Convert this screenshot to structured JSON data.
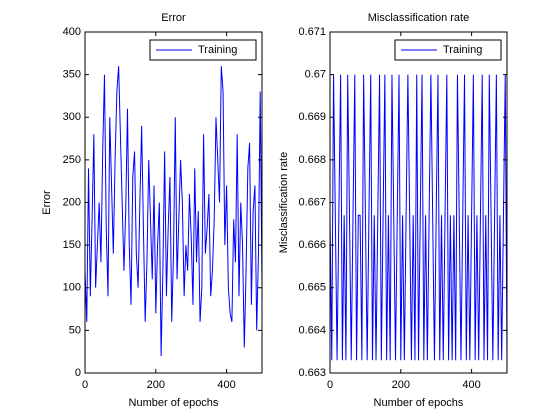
{
  "chart_data": [
    {
      "type": "line",
      "title": "Error",
      "xlabel": "Number of epochs",
      "ylabel": "Error",
      "x": [
        0,
        5,
        10,
        15,
        20,
        25,
        30,
        35,
        40,
        45,
        50,
        55,
        60,
        65,
        70,
        75,
        80,
        85,
        90,
        95,
        100,
        105,
        110,
        115,
        120,
        125,
        130,
        135,
        140,
        145,
        150,
        155,
        160,
        165,
        170,
        175,
        180,
        185,
        190,
        195,
        200,
        205,
        210,
        215,
        220,
        225,
        230,
        235,
        240,
        245,
        250,
        255,
        260,
        265,
        270,
        275,
        280,
        285,
        290,
        295,
        300,
        305,
        310,
        315,
        320,
        325,
        330,
        335,
        340,
        345,
        350,
        355,
        360,
        365,
        370,
        375,
        380,
        385,
        390,
        395,
        400,
        405,
        410,
        415,
        420,
        425,
        430,
        435,
        440,
        445,
        450,
        455,
        460,
        465,
        470,
        475,
        480,
        485,
        490,
        495,
        500
      ],
      "series": [
        {
          "name": "Training",
          "color": "#0000ff",
          "values": [
            120,
            60,
            240,
            90,
            180,
            280,
            100,
            150,
            200,
            130,
            260,
            350,
            170,
            90,
            300,
            220,
            140,
            250,
            330,
            360,
            280,
            200,
            120,
            190,
            310,
            150,
            80,
            230,
            260,
            140,
            100,
            200,
            290,
            170,
            60,
            130,
            250,
            180,
            110,
            220,
            70,
            150,
            200,
            20,
            120,
            260,
            90,
            170,
            230,
            60,
            140,
            300,
            110,
            180,
            250,
            200,
            90,
            150,
            120,
            210,
            160,
            80,
            240,
            130,
            190,
            60,
            100,
            280,
            140,
            170,
            210,
            90,
            120,
            180,
            300,
            250,
            200,
            360,
            330,
            150,
            220,
            100,
            70,
            60,
            180,
            130,
            280,
            90,
            200,
            150,
            30,
            120,
            240,
            270,
            80,
            190,
            220,
            50,
            140,
            330,
            100
          ]
        }
      ],
      "xlim": [
        0,
        500
      ],
      "ylim": [
        0,
        400
      ],
      "xticks": [
        0,
        200,
        400
      ],
      "yticks": [
        0,
        50,
        100,
        150,
        200,
        250,
        300,
        350,
        400
      ],
      "legend": "northeast"
    },
    {
      "type": "line",
      "title": "Misclassification rate",
      "xlabel": "Number of epochs",
      "ylabel": "Misclassification rate",
      "x": [
        0,
        5,
        10,
        15,
        20,
        25,
        30,
        35,
        40,
        45,
        50,
        55,
        60,
        65,
        70,
        75,
        80,
        85,
        90,
        95,
        100,
        105,
        110,
        115,
        120,
        125,
        130,
        135,
        140,
        145,
        150,
        155,
        160,
        165,
        170,
        175,
        180,
        185,
        190,
        195,
        200,
        205,
        210,
        215,
        220,
        225,
        230,
        235,
        240,
        245,
        250,
        255,
        260,
        265,
        270,
        275,
        280,
        285,
        290,
        295,
        300,
        305,
        310,
        315,
        320,
        325,
        330,
        335,
        340,
        345,
        350,
        355,
        360,
        365,
        370,
        375,
        380,
        385,
        390,
        395,
        400,
        405,
        410,
        415,
        420,
        425,
        430,
        435,
        440,
        445,
        450,
        455,
        460,
        465,
        470,
        475,
        480,
        485,
        490,
        495,
        500
      ],
      "series": [
        {
          "name": "Training",
          "color": "#0000ff",
          "values": [
            0.6667,
            0.6633,
            0.67,
            0.6667,
            0.6633,
            0.6667,
            0.67,
            0.6633,
            0.6667,
            0.6633,
            0.67,
            0.6667,
            0.6633,
            0.6667,
            0.67,
            0.6633,
            0.6667,
            0.6667,
            0.6633,
            0.67,
            0.6667,
            0.6633,
            0.6667,
            0.67,
            0.6633,
            0.6667,
            0.6633,
            0.6667,
            0.67,
            0.6633,
            0.6667,
            0.67,
            0.6633,
            0.6667,
            0.6633,
            0.67,
            0.6667,
            0.6633,
            0.6667,
            0.67,
            0.6633,
            0.6667,
            0.6633,
            0.6667,
            0.67,
            0.6667,
            0.6633,
            0.6667,
            0.6633,
            0.67,
            0.6633,
            0.6667,
            0.67,
            0.6633,
            0.6667,
            0.6633,
            0.6667,
            0.67,
            0.6667,
            0.6633,
            0.6667,
            0.67,
            0.6633,
            0.6667,
            0.6633,
            0.6667,
            0.67,
            0.6633,
            0.6667,
            0.6633,
            0.6667,
            0.6633,
            0.67,
            0.6667,
            0.6633,
            0.6667,
            0.67,
            0.6633,
            0.6667,
            0.6633,
            0.6667,
            0.67,
            0.6633,
            0.6667,
            0.6633,
            0.6667,
            0.67,
            0.6633,
            0.6667,
            0.6633,
            0.67,
            0.6667,
            0.6633,
            0.6667,
            0.67,
            0.6633,
            0.6667,
            0.6633,
            0.6667,
            0.67,
            0.6633
          ]
        }
      ],
      "xlim": [
        0,
        500
      ],
      "ylim": [
        0.663,
        0.671
      ],
      "xticks": [
        0,
        200,
        400
      ],
      "yticks": [
        0.663,
        0.664,
        0.665,
        0.666,
        0.667,
        0.668,
        0.669,
        0.67,
        0.671
      ],
      "legend": "northeast"
    }
  ]
}
